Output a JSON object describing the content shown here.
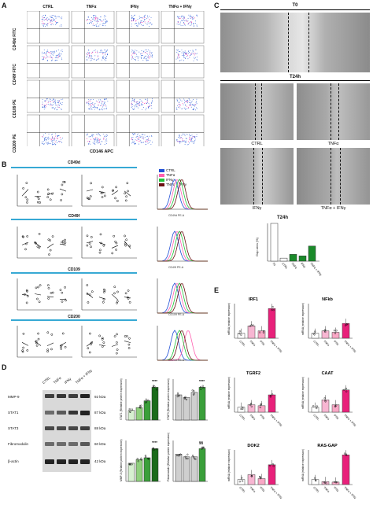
{
  "panel_labels": [
    "A",
    "B",
    "C",
    "D",
    "E"
  ],
  "panelA": {
    "columns": [
      "CTRL",
      "TNFα",
      "IFNγ",
      "TNFα + IFNγ"
    ],
    "rows": [
      "CD49d FITC",
      "CD49f FITC",
      "CD109 PE",
      "CD200 PE"
    ],
    "xaxis": "CD146 APC"
  },
  "panelB": {
    "sections": [
      "CD49d",
      "CD49f",
      "CD109",
      "CD200"
    ],
    "legend": [
      {
        "label": "CTRL",
        "color": "#1f4fd6"
      },
      {
        "label": "TNFα",
        "color": "#ff5fb0"
      },
      {
        "label": "IFNγ",
        "color": "#22c43a"
      },
      {
        "label": "TNFα + IFNγ",
        "color": "#6b1010"
      }
    ],
    "ylabels": [
      "Marker Expression %",
      "MFI (Mean)",
      "Cell Count %"
    ],
    "histx": [
      "CD49d PE-A",
      "CD49f PE-A",
      "CD109 PE-A",
      "CD200 PE-A"
    ],
    "conds": [
      "CTRL",
      "TNFα",
      "IFNγ",
      "TNFα + IFNγ"
    ]
  },
  "panelC": {
    "t0": "T0",
    "t24": "T24h",
    "labels": [
      "CTRL",
      "TNFα",
      "IFNγ",
      "TNFα + IFNγ"
    ],
    "chart_title": "T24h",
    "chart_ylabel": "Gap area (%)",
    "chart_cats": [
      "T0",
      "CTRL",
      "TNFα",
      "IFNγ",
      "TNFα + IFNγ"
    ],
    "chart_values": [
      100,
      8,
      18,
      14,
      40
    ],
    "ylim": [
      0,
      100
    ]
  },
  "panelD": {
    "lanes": [
      "CTRL",
      "TNFα",
      "IFNγ",
      "TNFα + IFNγ"
    ],
    "proteins": [
      "MMP-9",
      "STAT1",
      "STAT3",
      "Fibromodulin",
      "β-actin"
    ],
    "kda": [
      "92 kDa",
      "87 kDa",
      "88 kDa",
      "60 kDa",
      "42 kDa"
    ],
    "charts": [
      {
        "name": "STAT1",
        "ylabel": "STAT1 (Relative protein expression)",
        "values": [
          1.0,
          1.3,
          2.0,
          3.4
        ],
        "sig": "****"
      },
      {
        "name": "STAT3",
        "ylabel": "STAT3 (Relative protein expression)",
        "values": [
          1.0,
          0.9,
          1.1,
          1.3
        ],
        "sig": "****"
      },
      {
        "name": "MMP-9",
        "ylabel": "MMP-9 (Relative protein expression)",
        "values": [
          1.0,
          1.2,
          1.3,
          1.8
        ],
        "sig": "****"
      },
      {
        "name": "Fibromodulin",
        "ylabel": "Fibromodulin (Relative protein expression)",
        "values": [
          1.0,
          0.9,
          0.9,
          1.2
        ],
        "sig": "§§"
      }
    ]
  },
  "panelE": {
    "charts": [
      {
        "name": "IRF1",
        "values": [
          1,
          2.5,
          1.5,
          6
        ]
      },
      {
        "name": "NFkb",
        "values": [
          1,
          1.5,
          1.2,
          3
        ]
      },
      {
        "name": "TGRF2",
        "values": [
          1,
          1.5,
          1.3,
          3.5
        ]
      },
      {
        "name": "CAAT",
        "values": [
          1,
          2.5,
          1.5,
          4.5
        ]
      },
      {
        "name": "DOK2",
        "values": [
          1,
          2,
          1.2,
          4
        ]
      },
      {
        "name": "RAS-GAP",
        "values": [
          1,
          0.6,
          0.5,
          6
        ]
      }
    ],
    "ylabel": "mRNA (relative expression)",
    "conds": [
      "CTRL",
      "TNFα",
      "IFNγ",
      "TNFα + IFNγ"
    ],
    "colors": [
      "#ffffff",
      "#f7b6d2",
      "#f9a8c6",
      "#e8207a"
    ]
  }
}
